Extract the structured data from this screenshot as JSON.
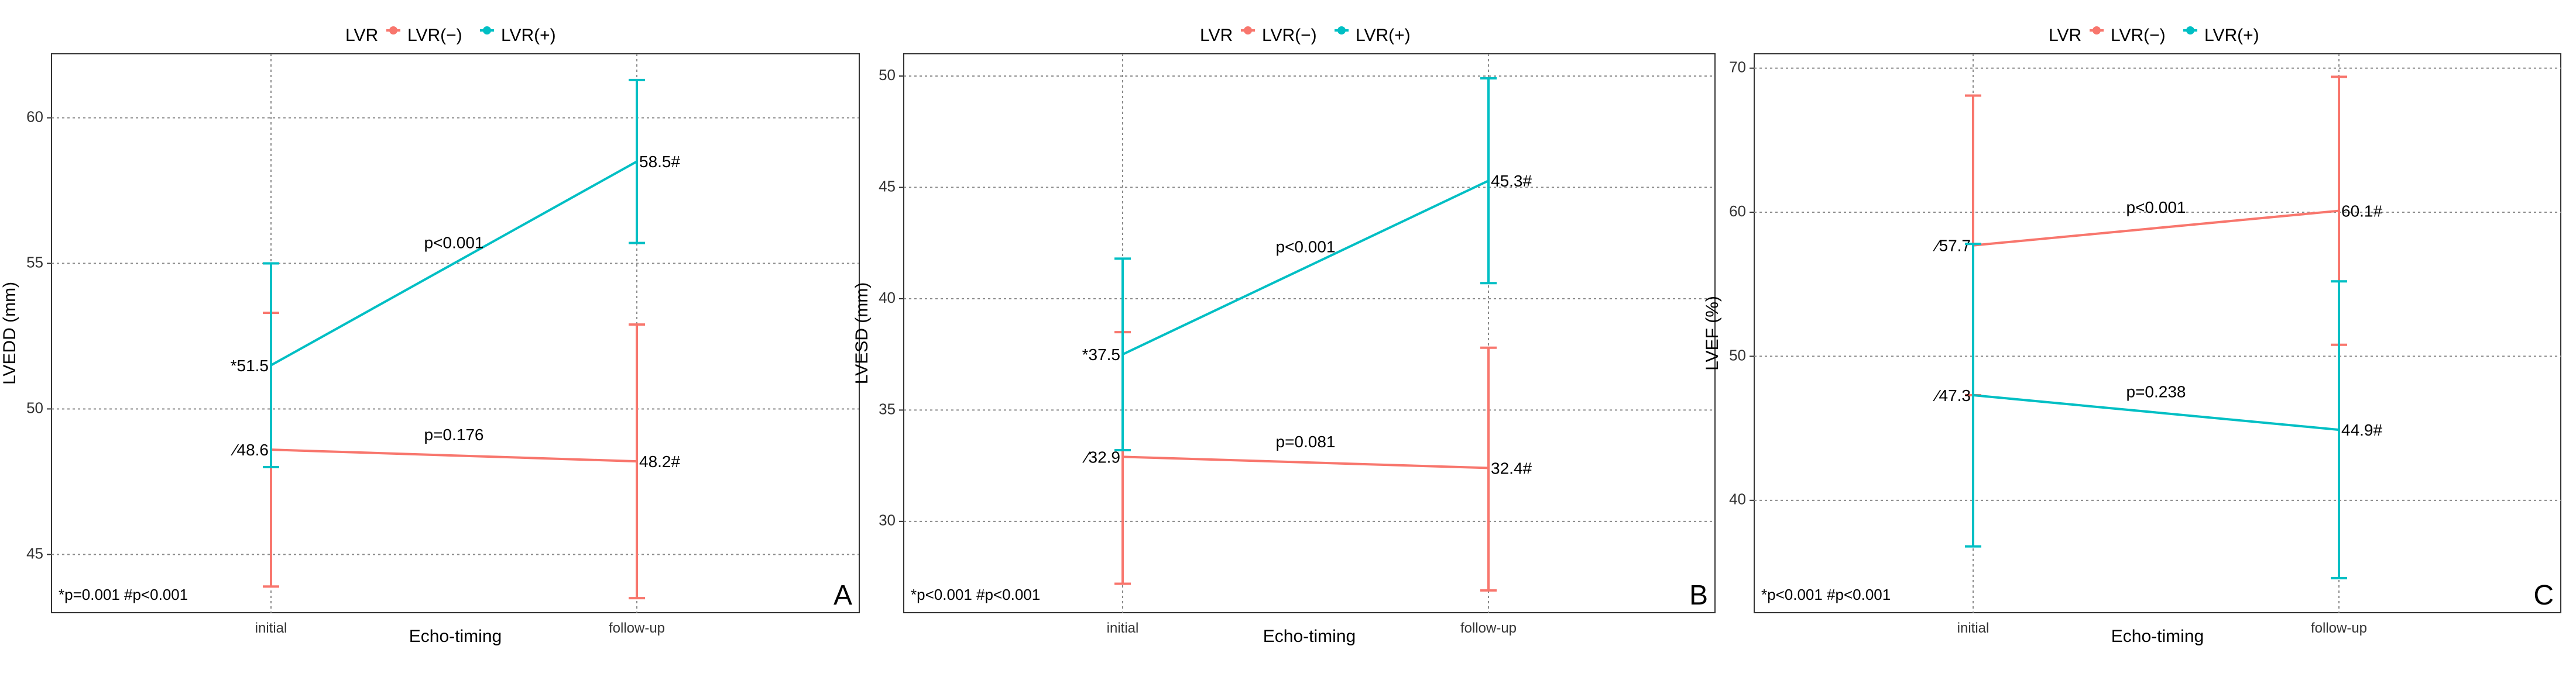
{
  "colors": {
    "lvr_minus": "#F8766D",
    "lvr_plus": "#00BFC4"
  },
  "legend": {
    "title": "LVR",
    "minus_label": "LVR(−)",
    "plus_label": "LVR(+)"
  },
  "chart_data": [
    {
      "type": "line",
      "panel_letter": "A",
      "xlabel": "Echo-timing",
      "ylabel": "LVEDD (mm)",
      "categories": [
        "initial",
        "follow-up"
      ],
      "ylim": [
        43,
        62.2
      ],
      "yticks": [
        45,
        50,
        55,
        60
      ],
      "footnote": "*p=0.001  #p<0.001",
      "series": [
        {
          "name": "LVR(−)",
          "color_key": "lvr_minus",
          "values": [
            48.6,
            48.2
          ],
          "err_low": [
            43.9,
            43.5
          ],
          "err_high": [
            53.3,
            52.9
          ],
          "value_labels": [
            "⁄48.6",
            "48.2#"
          ],
          "p_label": "p=0.176"
        },
        {
          "name": "LVR(+)",
          "color_key": "lvr_plus",
          "values": [
            51.5,
            58.5
          ],
          "err_low": [
            48.0,
            55.7
          ],
          "err_high": [
            55.0,
            61.3
          ],
          "value_labels": [
            "*51.5",
            "58.5#"
          ],
          "p_label": "p<0.001"
        }
      ]
    },
    {
      "type": "line",
      "panel_letter": "B",
      "xlabel": "Echo-timing",
      "ylabel": "LVESD (mm)",
      "categories": [
        "initial",
        "follow-up"
      ],
      "ylim": [
        25.9,
        51.0
      ],
      "yticks": [
        30,
        35,
        40,
        45,
        50
      ],
      "footnote": "*p<0.001  #p<0.001",
      "series": [
        {
          "name": "LVR(−)",
          "color_key": "lvr_minus",
          "values": [
            32.9,
            32.4
          ],
          "err_low": [
            27.2,
            26.9
          ],
          "err_high": [
            38.5,
            37.8
          ],
          "value_labels": [
            "⁄32.9",
            "32.4#"
          ],
          "p_label": "p=0.081"
        },
        {
          "name": "LVR(+)",
          "color_key": "lvr_plus",
          "values": [
            37.5,
            45.3
          ],
          "err_low": [
            33.2,
            40.7
          ],
          "err_high": [
            41.8,
            49.9
          ],
          "value_labels": [
            "*37.5",
            "45.3#"
          ],
          "p_label": "p<0.001"
        }
      ]
    },
    {
      "type": "line",
      "panel_letter": "C",
      "xlabel": "Echo-timing",
      "ylabel": "LVEF (%)",
      "categories": [
        "initial",
        "follow-up"
      ],
      "ylim": [
        32.2,
        71.0
      ],
      "yticks": [
        40,
        50,
        60,
        70
      ],
      "footnote": "*p<0.001  #p<0.001",
      "series": [
        {
          "name": "LVR(−)",
          "color_key": "lvr_minus",
          "values": [
            57.7,
            60.1
          ],
          "err_low": [
            47.3,
            50.8
          ],
          "err_high": [
            68.1,
            69.4
          ],
          "value_labels": [
            "⁄57.7",
            "60.1#"
          ],
          "p_label": "p<0.001"
        },
        {
          "name": "LVR(+)",
          "color_key": "lvr_plus",
          "values": [
            47.3,
            44.9
          ],
          "err_low": [
            36.8,
            34.6
          ],
          "err_high": [
            57.8,
            55.2
          ],
          "value_labels": [
            "⁄47.3",
            "44.9#"
          ],
          "p_label": "p=0.238"
        }
      ]
    }
  ]
}
